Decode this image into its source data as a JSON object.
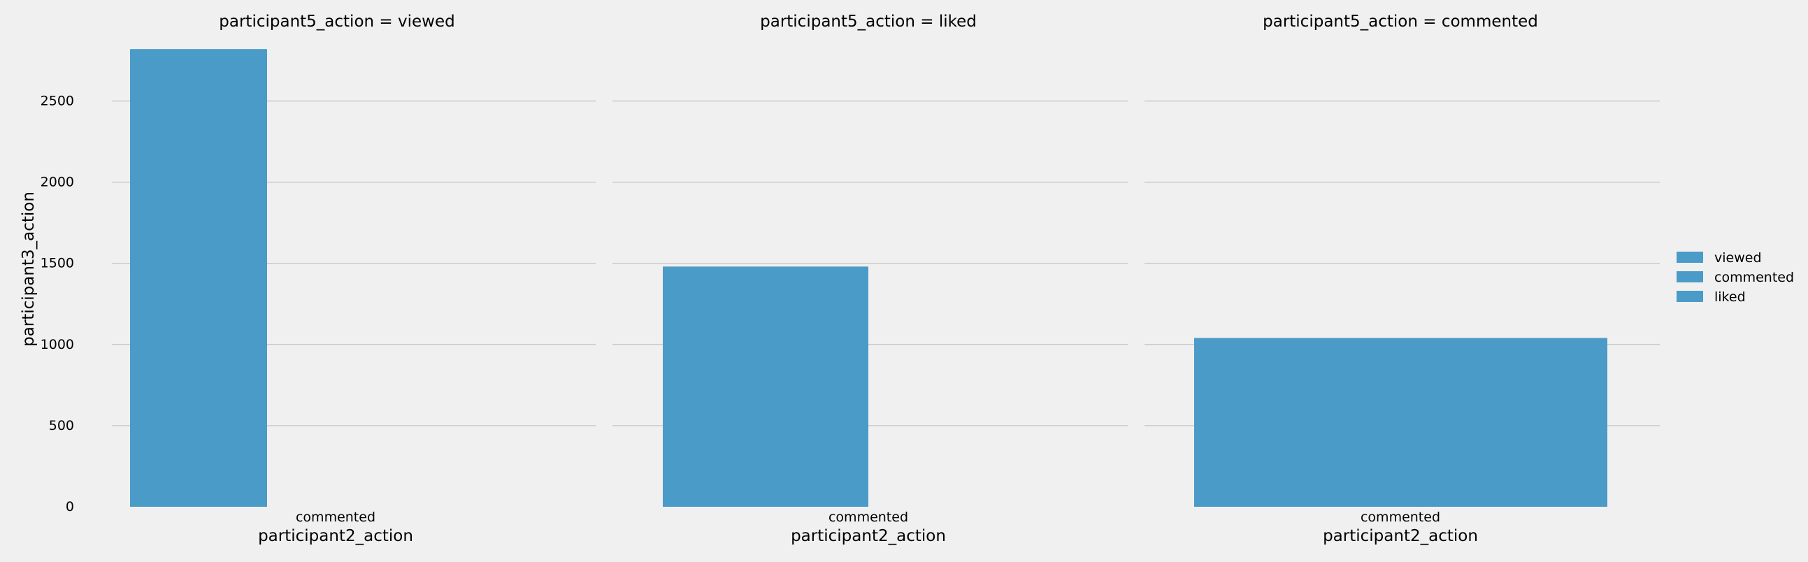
{
  "chart_data": {
    "type": "bar",
    "ylabel": "participant3_action",
    "ylim": [
      0,
      2950
    ],
    "yticks": [
      0,
      500,
      1000,
      1500,
      2000,
      2500
    ],
    "grid": true,
    "legend_placement": "right",
    "legend": [
      "viewed",
      "commented",
      "liked"
    ],
    "bar_color": "#4a9bc7",
    "panels": [
      {
        "title": "participant5_action = viewed",
        "xlabel": "participant2_action",
        "categories": [
          "commented"
        ],
        "series": [
          {
            "name": "viewed",
            "value": 2820
          }
        ]
      },
      {
        "title": "participant5_action = liked",
        "xlabel": "participant2_action",
        "categories": [
          "commented"
        ],
        "series": [
          {
            "name": "liked",
            "value": 1480
          }
        ]
      },
      {
        "title": "participant5_action = commented",
        "xlabel": "participant2_action",
        "categories": [
          "commented"
        ],
        "series": [
          {
            "name": "commented",
            "value": 1040
          }
        ]
      }
    ]
  }
}
